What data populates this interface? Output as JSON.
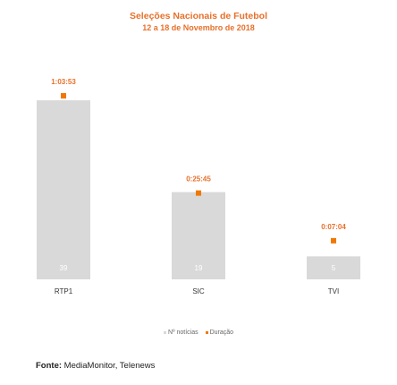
{
  "chart_data": {
    "type": "bar",
    "title": "Seleções Nacionais de Futebol",
    "subtitle": "12 a 18 de Novembro de 2018",
    "categories": [
      "RTP1",
      "SIC",
      "TVI"
    ],
    "series": [
      {
        "name": "Nº notícias",
        "values": [
          39,
          19,
          5
        ],
        "color": "#d9d9d9",
        "mark": "bar"
      },
      {
        "name": "Duração",
        "values": [
          "1:03:53",
          "0:25:45",
          "0:07:04"
        ],
        "minutes": [
          63.88,
          25.75,
          7.07
        ],
        "color": "#f07800",
        "mark": "point"
      }
    ],
    "legend": "bottom",
    "grid": false
  },
  "source": {
    "label": "Fonte:",
    "text": "MediaMonitor, Telenews"
  }
}
